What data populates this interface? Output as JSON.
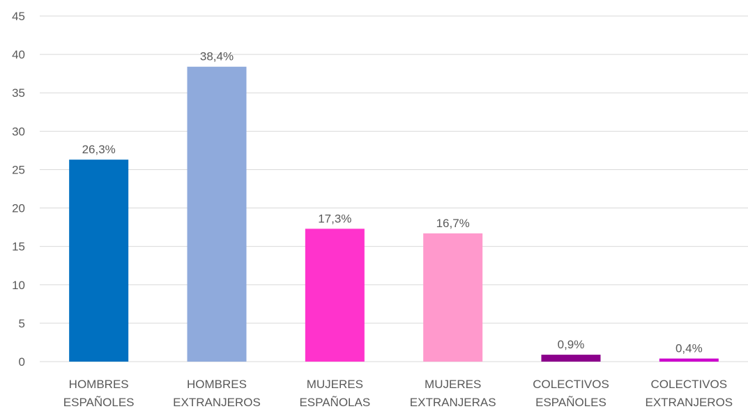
{
  "chart_data": {
    "type": "bar",
    "title": "",
    "xlabel": "",
    "ylabel": "",
    "ylim": [
      0,
      45
    ],
    "yticks": [
      0,
      5,
      10,
      15,
      20,
      25,
      30,
      35,
      40,
      45
    ],
    "grid": true,
    "legend": "none",
    "categories": [
      [
        "HOMBRES",
        "ESPAÑOLES"
      ],
      [
        "HOMBRES",
        "EXTRANJEROS"
      ],
      [
        "MUJERES",
        "ESPAÑOLAS"
      ],
      [
        "MUJERES",
        "EXTRANJERAS"
      ],
      [
        "COLECTIVOS",
        "ESPAÑOLES"
      ],
      [
        "COLECTIVOS",
        "EXTRANJEROS"
      ]
    ],
    "values": [
      26.3,
      38.4,
      17.3,
      16.7,
      0.9,
      0.4
    ],
    "data_labels": [
      "26,3%",
      "38,4%",
      "17,3%",
      "16,7%",
      "0,9%",
      "0,4%"
    ],
    "colors": [
      "#0070c0",
      "#8faadc",
      "#ff33cc",
      "#ff99cc",
      "#8b008b",
      "#cc00cc"
    ]
  }
}
